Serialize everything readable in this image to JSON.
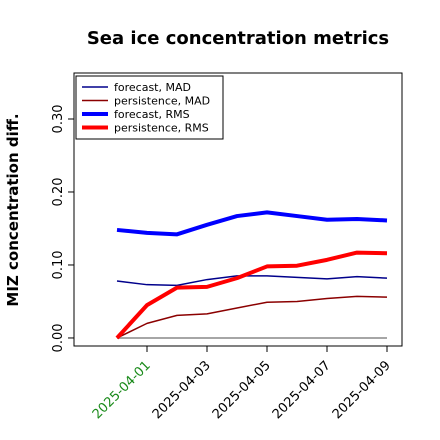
{
  "chart_data": {
    "type": "line",
    "title": "Sea ice concentration metrics",
    "y_label": "MIZ concentration diff.",
    "categories": [
      null,
      "2025-04-01",
      null,
      "2025-04-03",
      null,
      "2025-04-05",
      null,
      "2025-04-07",
      null,
      "2025-04-09"
    ],
    "first_label_color": "#1a8a1a",
    "reference_line": {
      "value": 0,
      "color": "#888888"
    },
    "series": [
      {
        "name": "forecast,  MAD",
        "color": "#00008b",
        "width": 1.5,
        "values": [
          0.078,
          0.073,
          0.072,
          0.08,
          0.085,
          0.085,
          0.083,
          0.081,
          0.084,
          0.082
        ]
      },
      {
        "name": "persistence, MAD",
        "color": "#8b0000",
        "width": 1.5,
        "values": [
          0,
          0.02,
          0.031,
          0.033,
          0.041,
          0.049,
          0.05,
          0.054,
          0.057,
          0.056
        ]
      },
      {
        "name": "forecast,  RMS",
        "color": "#0000ff",
        "width": 4,
        "values": [
          0.148,
          0.144,
          0.142,
          0.155,
          0.167,
          0.172,
          0.167,
          0.162,
          0.163,
          0.161
        ]
      },
      {
        "name": "persistence, RMS",
        "color": "#ff0000",
        "width": 4,
        "values": [
          0,
          0.045,
          0.069,
          0.07,
          0.082,
          0.098,
          0.099,
          0.107,
          0.117,
          0.116
        ]
      }
    ],
    "ylim": [
      -0.011,
      0.363
    ],
    "yticks": [
      {
        "value": 0,
        "label": "0.00"
      },
      {
        "value": 0.1,
        "label": "0.10"
      },
      {
        "value": 0.2,
        "label": "0.20"
      },
      {
        "value": 0.3,
        "label": "0.30"
      }
    ],
    "legend": "upper left"
  }
}
